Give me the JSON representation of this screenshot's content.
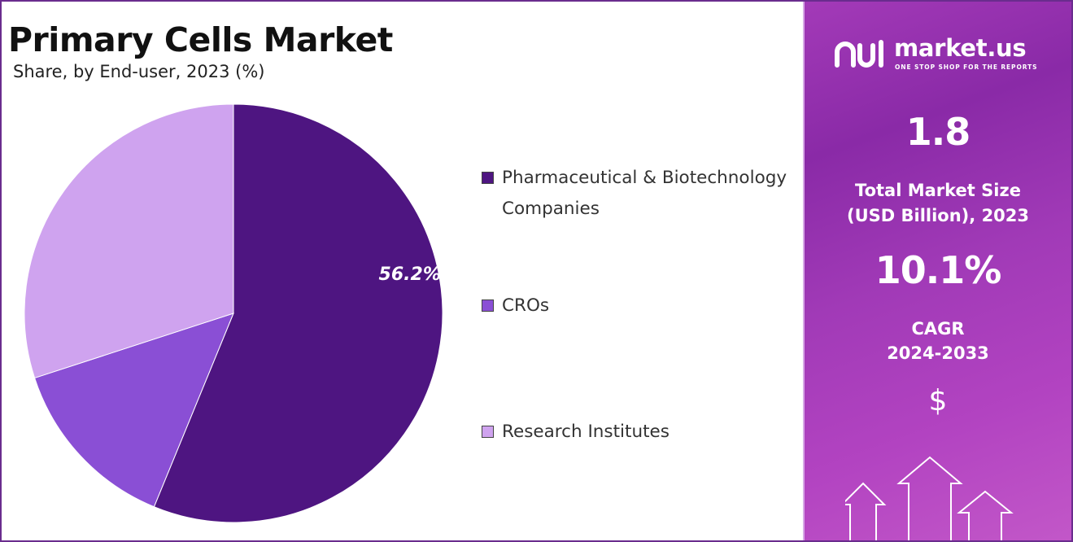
{
  "chart_data": {
    "type": "pie",
    "title": "Primary Cells Market",
    "subtitle": "Share, by End-user, 2023 (%)",
    "series": [
      {
        "name": "Pharmaceutical & Biotechnology Companies",
        "value": 56.2,
        "color": "#4e1581",
        "label": "56.2%"
      },
      {
        "name": "CROs",
        "value": 13.8,
        "color": "#8a4fd5",
        "label": ""
      },
      {
        "name": "Research Institutes",
        "value": 30.0,
        "color": "#cfa3ef",
        "label": ""
      }
    ],
    "legend_placement": "right"
  },
  "brand": {
    "name": "market.us",
    "tagline": "ONE STOP SHOP FOR THE REPORTS"
  },
  "stats": {
    "market_size_value": "1.8",
    "market_size_label_line1": "Total Market Size",
    "market_size_label_line2": "(USD Billion), 2023",
    "cagr_value": "10.1%",
    "cagr_label_line1": "CAGR",
    "cagr_label_line2": "2024-2033",
    "currency_symbol": "$"
  },
  "colors": {
    "panel_accent": "#a33ab8",
    "frame": "#6a2c8e"
  }
}
